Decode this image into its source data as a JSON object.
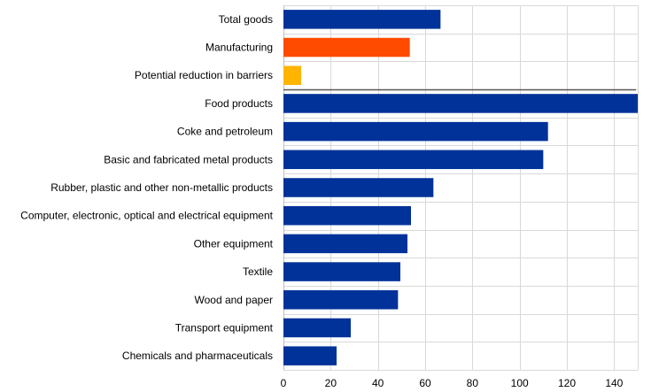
{
  "chart_data": {
    "type": "bar",
    "orientation": "horizontal",
    "categories": [
      "Total goods",
      "Manufacturing",
      "Potential reduction in barriers",
      "Food products",
      "Coke and petroleum",
      "Basic and fabricated metal products",
      "Rubber, plastic and other non-metallic products",
      "Computer, electronic, optical and electrical equipment",
      "Other equipment",
      "Textile",
      "Wood and paper",
      "Transport equipment",
      "Chemicals and pharmaceuticals"
    ],
    "values": [
      66.5,
      53.5,
      7.5,
      150,
      112,
      110,
      63.5,
      54,
      52.5,
      49.5,
      48.5,
      28.5,
      22.5
    ],
    "bar_colors": [
      "#003299",
      "#ff4b00",
      "#ffb400",
      "#003299",
      "#003299",
      "#003299",
      "#003299",
      "#003299",
      "#003299",
      "#003299",
      "#003299",
      "#003299",
      "#003299"
    ],
    "xlim": [
      0,
      150
    ],
    "xticks": [
      "0",
      "20",
      "40",
      "60",
      "80",
      "100",
      "120",
      "140"
    ],
    "xtick_values": [
      0,
      20,
      40,
      60,
      80,
      100,
      120,
      140
    ],
    "separator_after_index": 2,
    "grid": true,
    "title": "",
    "xlabel": "",
    "ylabel": ""
  }
}
